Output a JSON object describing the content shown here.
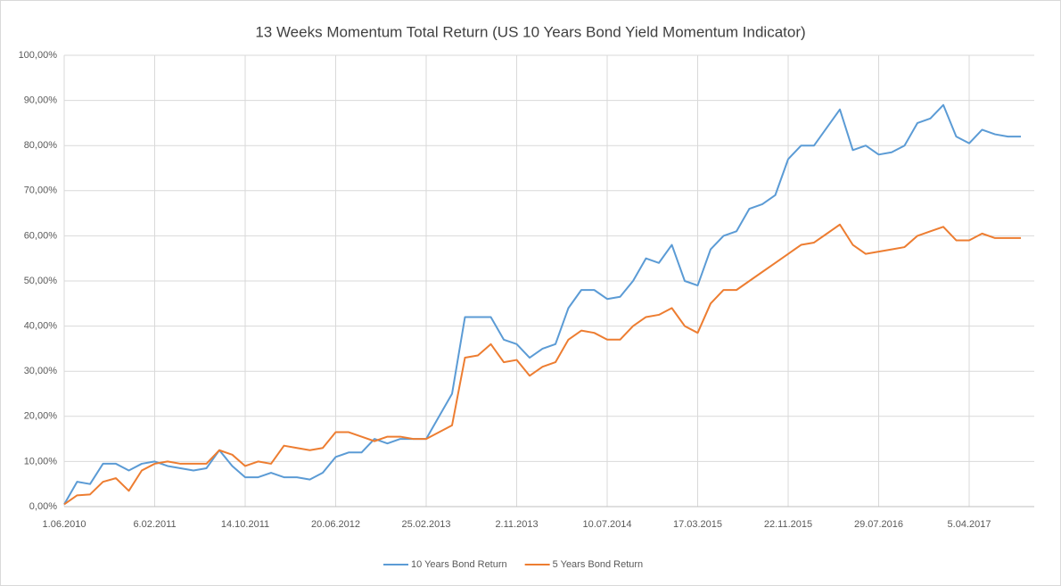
{
  "chart_data": {
    "type": "line",
    "title": "13 Weeks Momentum Total Return (US 10 Years Bond Yield Momentum Indicator)",
    "categories": [
      "1.06.2010",
      null,
      null,
      null,
      null,
      null,
      null,
      "6.02.2011",
      null,
      null,
      null,
      null,
      null,
      null,
      "14.10.2011",
      null,
      null,
      null,
      null,
      null,
      null,
      "20.06.2012",
      null,
      null,
      null,
      null,
      null,
      null,
      "25.02.2013",
      null,
      null,
      null,
      null,
      null,
      null,
      "2.11.2013",
      null,
      null,
      null,
      null,
      null,
      null,
      "10.07.2014",
      null,
      null,
      null,
      null,
      null,
      null,
      "17.03.2015",
      null,
      null,
      null,
      null,
      null,
      null,
      "22.11.2015",
      null,
      null,
      null,
      null,
      null,
      null,
      "29.07.2016",
      null,
      null,
      null,
      null,
      null,
      null,
      "5.04.2017",
      null,
      null,
      null,
      null
    ],
    "series": [
      {
        "name": "10 Years Bond Return",
        "color": "#5b9bd5",
        "values": [
          0.5,
          5.5,
          5,
          9.5,
          9.5,
          8,
          9.5,
          10,
          9,
          8.5,
          8,
          8.5,
          12.5,
          9,
          6.5,
          6.5,
          7.5,
          6.5,
          6.5,
          6,
          7.5,
          11,
          12,
          12,
          15,
          14,
          15,
          15,
          15,
          20,
          25,
          42,
          42,
          42,
          37,
          36,
          33,
          35,
          36,
          44,
          48,
          48,
          46,
          46.5,
          50,
          55,
          54,
          58,
          50,
          49,
          57,
          60,
          61,
          66,
          67,
          69,
          77,
          80,
          80,
          84,
          88,
          79,
          80,
          78,
          78.5,
          80,
          85,
          86,
          89,
          82,
          80.5,
          83.5,
          82.5,
          82,
          82
        ]
      },
      {
        "name": "5 Years Bond Return",
        "color": "#ed7d31",
        "values": [
          0.5,
          2.5,
          2.7,
          5.5,
          6.3,
          3.5,
          8,
          9.5,
          10,
          9.5,
          9.5,
          9.5,
          12.5,
          11.5,
          9,
          10,
          9.5,
          13.5,
          13,
          12.5,
          13,
          16.5,
          16.5,
          15.5,
          14.5,
          15.5,
          15.5,
          15,
          15,
          16.5,
          18,
          33,
          33.5,
          36,
          32,
          32.5,
          29,
          31,
          32,
          37,
          39,
          38.5,
          37,
          37,
          40,
          42,
          42.5,
          44,
          40,
          38.5,
          45,
          48,
          48,
          50,
          52,
          54,
          56,
          58,
          58.5,
          60.5,
          62.5,
          58,
          56,
          56.5,
          57,
          57.5,
          60,
          61,
          62,
          59,
          59,
          60.5,
          59.5,
          59.5,
          59.5
        ]
      }
    ],
    "ylim": [
      0,
      100
    ],
    "yticks": [
      {
        "value": 0,
        "label": "0,00%"
      },
      {
        "value": 10,
        "label": "10,00%"
      },
      {
        "value": 20,
        "label": "20,00%"
      },
      {
        "value": 30,
        "label": "30,00%"
      },
      {
        "value": 40,
        "label": "40,00%"
      },
      {
        "value": 50,
        "label": "50,00%"
      },
      {
        "value": 60,
        "label": "60,00%"
      },
      {
        "value": 70,
        "label": "70,00%"
      },
      {
        "value": 80,
        "label": "80,00%"
      },
      {
        "value": 90,
        "label": "90,00%"
      },
      {
        "value": 100,
        "label": "100,00%"
      }
    ],
    "grid": true,
    "legend": "bottom"
  }
}
